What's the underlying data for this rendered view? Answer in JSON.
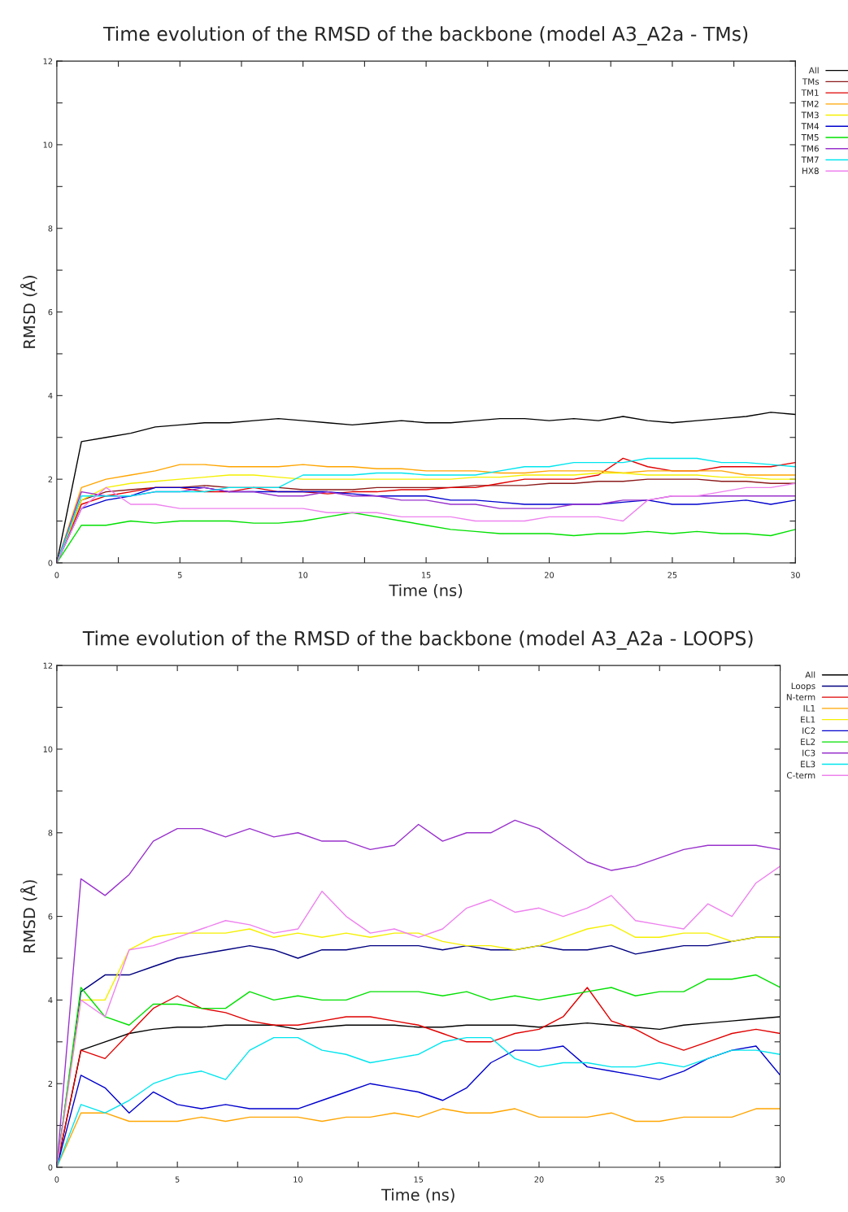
{
  "chart_data": [
    {
      "type": "line",
      "title": "Time evolution of the RMSD of the backbone (model A3_A2a - TMs)",
      "xlabel": "Time (ns)",
      "ylabel": "RMSD (Å)",
      "x": [
        0,
        1,
        2,
        3,
        4,
        5,
        6,
        7,
        8,
        9,
        10,
        11,
        12,
        13,
        14,
        15,
        16,
        17,
        18,
        19,
        20,
        21,
        22,
        23,
        24,
        25,
        26,
        27,
        28,
        29,
        30
      ],
      "xlim": [
        0,
        30
      ],
      "ylim": [
        0,
        12
      ],
      "xticks": [
        0,
        {
          "value": 2.5,
          "label": null
        },
        5,
        {
          "value": 7.5,
          "label": null
        },
        10,
        {
          "value": 12.5,
          "label": null
        },
        15,
        {
          "value": 17.5,
          "label": null
        },
        20,
        {
          "value": 22.5,
          "label": null
        },
        25,
        {
          "value": 27.5,
          "label": null
        },
        30
      ],
      "yticks": [
        0,
        {
          "value": 1,
          "label": null
        },
        2,
        {
          "value": 3,
          "label": null
        },
        4,
        {
          "value": 5,
          "label": null
        },
        6,
        {
          "value": 7,
          "label": null
        },
        8,
        {
          "value": 9,
          "label": null
        },
        10,
        {
          "value": 11,
          "label": null
        },
        12
      ],
      "grid": false,
      "legend": "right",
      "marker": "none",
      "line_style": "solid",
      "series": [
        {
          "name": "All",
          "color": "#000000",
          "values": [
            0,
            2.9,
            3.0,
            3.1,
            3.25,
            3.3,
            3.35,
            3.35,
            3.4,
            3.45,
            3.4,
            3.35,
            3.3,
            3.35,
            3.4,
            3.35,
            3.35,
            3.4,
            3.45,
            3.45,
            3.4,
            3.45,
            3.4,
            3.5,
            3.4,
            3.35,
            3.4,
            3.45,
            3.5,
            3.6,
            3.55
          ]
        },
        {
          "name": "TMs",
          "color": "#8b1a1a",
          "values": [
            0,
            1.5,
            1.7,
            1.75,
            1.8,
            1.8,
            1.85,
            1.8,
            1.8,
            1.8,
            1.75,
            1.75,
            1.75,
            1.8,
            1.8,
            1.8,
            1.8,
            1.85,
            1.85,
            1.85,
            1.9,
            1.9,
            1.95,
            1.95,
            2.0,
            2.0,
            2.0,
            1.95,
            1.95,
            1.9,
            1.9
          ]
        },
        {
          "name": "TM1",
          "color": "#e00000",
          "values": [
            0,
            1.4,
            1.6,
            1.7,
            1.8,
            1.8,
            1.7,
            1.7,
            1.8,
            1.7,
            1.7,
            1.65,
            1.7,
            1.7,
            1.75,
            1.75,
            1.8,
            1.8,
            1.9,
            2.0,
            2.0,
            2.0,
            2.1,
            2.5,
            2.3,
            2.2,
            2.2,
            2.3,
            2.3,
            2.3,
            2.4
          ]
        },
        {
          "name": "TM2",
          "color": "#ffa500",
          "values": [
            0,
            1.8,
            2.0,
            2.1,
            2.2,
            2.35,
            2.35,
            2.3,
            2.3,
            2.3,
            2.35,
            2.3,
            2.3,
            2.25,
            2.25,
            2.2,
            2.2,
            2.2,
            2.15,
            2.15,
            2.2,
            2.2,
            2.2,
            2.15,
            2.2,
            2.2,
            2.2,
            2.2,
            2.1,
            2.1,
            2.1
          ]
        },
        {
          "name": "TM3",
          "color": "#f5f000",
          "values": [
            0,
            1.5,
            1.8,
            1.9,
            1.95,
            2.0,
            2.05,
            2.1,
            2.1,
            2.05,
            2.0,
            2.0,
            2.0,
            2.0,
            2.0,
            2.0,
            2.0,
            2.05,
            2.05,
            2.1,
            2.1,
            2.1,
            2.15,
            2.15,
            2.1,
            2.1,
            2.1,
            2.05,
            2.05,
            2.0,
            2.0
          ]
        },
        {
          "name": "TM4",
          "color": "#0000cd",
          "values": [
            0,
            1.3,
            1.5,
            1.6,
            1.8,
            1.8,
            1.8,
            1.7,
            1.7,
            1.7,
            1.7,
            1.7,
            1.65,
            1.6,
            1.6,
            1.6,
            1.5,
            1.5,
            1.45,
            1.4,
            1.4,
            1.4,
            1.4,
            1.45,
            1.5,
            1.4,
            1.4,
            1.45,
            1.5,
            1.4,
            1.5
          ]
        },
        {
          "name": "TM5",
          "color": "#00e000",
          "values": [
            0,
            0.9,
            0.9,
            1.0,
            0.95,
            1.0,
            1.0,
            1.0,
            0.95,
            0.95,
            1.0,
            1.1,
            1.2,
            1.1,
            1.0,
            0.9,
            0.8,
            0.75,
            0.7,
            0.7,
            0.7,
            0.65,
            0.7,
            0.7,
            0.75,
            0.7,
            0.75,
            0.7,
            0.7,
            0.65,
            0.8
          ]
        },
        {
          "name": "TM6",
          "color": "#9932cc",
          "values": [
            0,
            1.7,
            1.6,
            1.6,
            1.7,
            1.7,
            1.8,
            1.7,
            1.7,
            1.6,
            1.6,
            1.7,
            1.6,
            1.6,
            1.5,
            1.5,
            1.4,
            1.4,
            1.3,
            1.3,
            1.3,
            1.4,
            1.4,
            1.5,
            1.5,
            1.6,
            1.6,
            1.6,
            1.6,
            1.6,
            1.6
          ]
        },
        {
          "name": "TM7",
          "color": "#00e5ee",
          "values": [
            0,
            1.6,
            1.6,
            1.6,
            1.7,
            1.7,
            1.7,
            1.8,
            1.8,
            1.8,
            2.1,
            2.1,
            2.1,
            2.15,
            2.15,
            2.1,
            2.1,
            2.1,
            2.2,
            2.3,
            2.3,
            2.4,
            2.4,
            2.4,
            2.5,
            2.5,
            2.5,
            2.4,
            2.4,
            2.35,
            2.3
          ]
        },
        {
          "name": "HX8",
          "color": "#ee82ee",
          "values": [
            0,
            1.3,
            1.8,
            1.4,
            1.4,
            1.3,
            1.3,
            1.3,
            1.3,
            1.3,
            1.3,
            1.2,
            1.2,
            1.2,
            1.1,
            1.1,
            1.1,
            1.0,
            1.0,
            1.0,
            1.1,
            1.1,
            1.1,
            1.0,
            1.5,
            1.6,
            1.6,
            1.7,
            1.8,
            1.8,
            1.9
          ]
        }
      ]
    },
    {
      "type": "line",
      "title": "Time evolution of the RMSD of the backbone (model A3_A2a - LOOPS)",
      "xlabel": "Time (ns)",
      "ylabel": "RMSD (Å)",
      "x": [
        0,
        1,
        2,
        3,
        4,
        5,
        6,
        7,
        8,
        9,
        10,
        11,
        12,
        13,
        14,
        15,
        16,
        17,
        18,
        19,
        20,
        21,
        22,
        23,
        24,
        25,
        26,
        27,
        28,
        29,
        30
      ],
      "xlim": [
        0,
        30
      ],
      "ylim": [
        0,
        12
      ],
      "xticks": [
        0,
        {
          "value": 2.5,
          "label": null
        },
        5,
        {
          "value": 7.5,
          "label": null
        },
        10,
        {
          "value": 12.5,
          "label": null
        },
        15,
        {
          "value": 17.5,
          "label": null
        },
        20,
        {
          "value": 22.5,
          "label": null
        },
        25,
        {
          "value": 27.5,
          "label": null
        },
        30
      ],
      "yticks": [
        0,
        {
          "value": 1,
          "label": null
        },
        2,
        {
          "value": 3,
          "label": null
        },
        4,
        {
          "value": 5,
          "label": null
        },
        6,
        {
          "value": 7,
          "label": null
        },
        8,
        {
          "value": 9,
          "label": null
        },
        10,
        {
          "value": 11,
          "label": null
        },
        12
      ],
      "grid": false,
      "legend": "right",
      "marker": "none",
      "line_style": "solid",
      "series": [
        {
          "name": "All",
          "color": "#000000",
          "values": [
            0,
            2.8,
            3.0,
            3.2,
            3.3,
            3.35,
            3.35,
            3.4,
            3.4,
            3.4,
            3.3,
            3.35,
            3.4,
            3.4,
            3.4,
            3.35,
            3.35,
            3.4,
            3.4,
            3.4,
            3.35,
            3.4,
            3.45,
            3.4,
            3.35,
            3.3,
            3.4,
            3.45,
            3.5,
            3.55,
            3.6
          ]
        },
        {
          "name": "Loops",
          "color": "#000080",
          "values": [
            0,
            4.2,
            4.6,
            4.6,
            4.8,
            5.0,
            5.1,
            5.2,
            5.3,
            5.2,
            5.0,
            5.2,
            5.2,
            5.3,
            5.3,
            5.3,
            5.2,
            5.3,
            5.2,
            5.2,
            5.3,
            5.2,
            5.2,
            5.3,
            5.1,
            5.2,
            5.3,
            5.3,
            5.4,
            5.5,
            5.5
          ]
        },
        {
          "name": "N-term",
          "color": "#e00000",
          "values": [
            0,
            2.8,
            2.6,
            3.2,
            3.8,
            4.1,
            3.8,
            3.7,
            3.5,
            3.4,
            3.4,
            3.5,
            3.6,
            3.6,
            3.5,
            3.4,
            3.2,
            3.0,
            3.0,
            3.2,
            3.3,
            3.6,
            4.3,
            3.5,
            3.3,
            3.0,
            2.8,
            3.0,
            3.2,
            3.3,
            3.2
          ]
        },
        {
          "name": "IL1",
          "color": "#ffa500",
          "values": [
            0,
            1.3,
            1.3,
            1.1,
            1.1,
            1.1,
            1.2,
            1.1,
            1.2,
            1.2,
            1.2,
            1.1,
            1.2,
            1.2,
            1.3,
            1.2,
            1.4,
            1.3,
            1.3,
            1.4,
            1.2,
            1.2,
            1.2,
            1.3,
            1.1,
            1.1,
            1.2,
            1.2,
            1.2,
            1.4,
            1.4
          ]
        },
        {
          "name": "EL1",
          "color": "#f5f000",
          "values": [
            0,
            4.0,
            4.0,
            5.2,
            5.5,
            5.6,
            5.6,
            5.6,
            5.7,
            5.5,
            5.6,
            5.5,
            5.6,
            5.5,
            5.6,
            5.6,
            5.4,
            5.3,
            5.3,
            5.2,
            5.3,
            5.5,
            5.7,
            5.8,
            5.5,
            5.5,
            5.6,
            5.6,
            5.4,
            5.5,
            5.5
          ]
        },
        {
          "name": "IC2",
          "color": "#0000cd",
          "values": [
            0,
            2.2,
            1.9,
            1.3,
            1.8,
            1.5,
            1.4,
            1.5,
            1.4,
            1.4,
            1.4,
            1.6,
            1.8,
            2.0,
            1.9,
            1.8,
            1.6,
            1.9,
            2.5,
            2.8,
            2.8,
            2.9,
            2.4,
            2.3,
            2.2,
            2.1,
            2.3,
            2.6,
            2.8,
            2.9,
            2.2
          ]
        },
        {
          "name": "EL2",
          "color": "#00e000",
          "values": [
            0,
            4.3,
            3.6,
            3.4,
            3.9,
            3.9,
            3.8,
            3.8,
            4.2,
            4.0,
            4.1,
            4.0,
            4.0,
            4.2,
            4.2,
            4.2,
            4.1,
            4.2,
            4.0,
            4.1,
            4.0,
            4.1,
            4.2,
            4.3,
            4.1,
            4.2,
            4.2,
            4.5,
            4.5,
            4.6,
            4.3
          ]
        },
        {
          "name": "IC3",
          "color": "#9932cc",
          "values": [
            0,
            6.9,
            6.5,
            7.0,
            7.8,
            8.1,
            8.1,
            7.9,
            8.1,
            7.9,
            8.0,
            7.8,
            7.8,
            7.6,
            7.7,
            8.2,
            7.8,
            8.0,
            8.0,
            8.3,
            8.1,
            7.7,
            7.3,
            7.1,
            7.2,
            7.4,
            7.6,
            7.7,
            7.7,
            7.7,
            7.6
          ]
        },
        {
          "name": "EL3",
          "color": "#00e5ee",
          "values": [
            0,
            1.5,
            1.3,
            1.6,
            2.0,
            2.2,
            2.3,
            2.1,
            2.8,
            3.1,
            3.1,
            2.8,
            2.7,
            2.5,
            2.6,
            2.7,
            3.0,
            3.1,
            3.1,
            2.6,
            2.4,
            2.5,
            2.5,
            2.4,
            2.4,
            2.5,
            2.4,
            2.6,
            2.8,
            2.8,
            2.7
          ]
        },
        {
          "name": "C-term",
          "color": "#ee82ee",
          "values": [
            0,
            4.0,
            3.6,
            5.2,
            5.3,
            5.5,
            5.7,
            5.9,
            5.8,
            5.6,
            5.7,
            6.6,
            6.0,
            5.6,
            5.7,
            5.5,
            5.7,
            6.2,
            6.4,
            6.1,
            6.2,
            6.0,
            6.2,
            6.5,
            5.9,
            5.8,
            5.7,
            6.3,
            6.0,
            6.8,
            7.2
          ]
        }
      ]
    }
  ]
}
